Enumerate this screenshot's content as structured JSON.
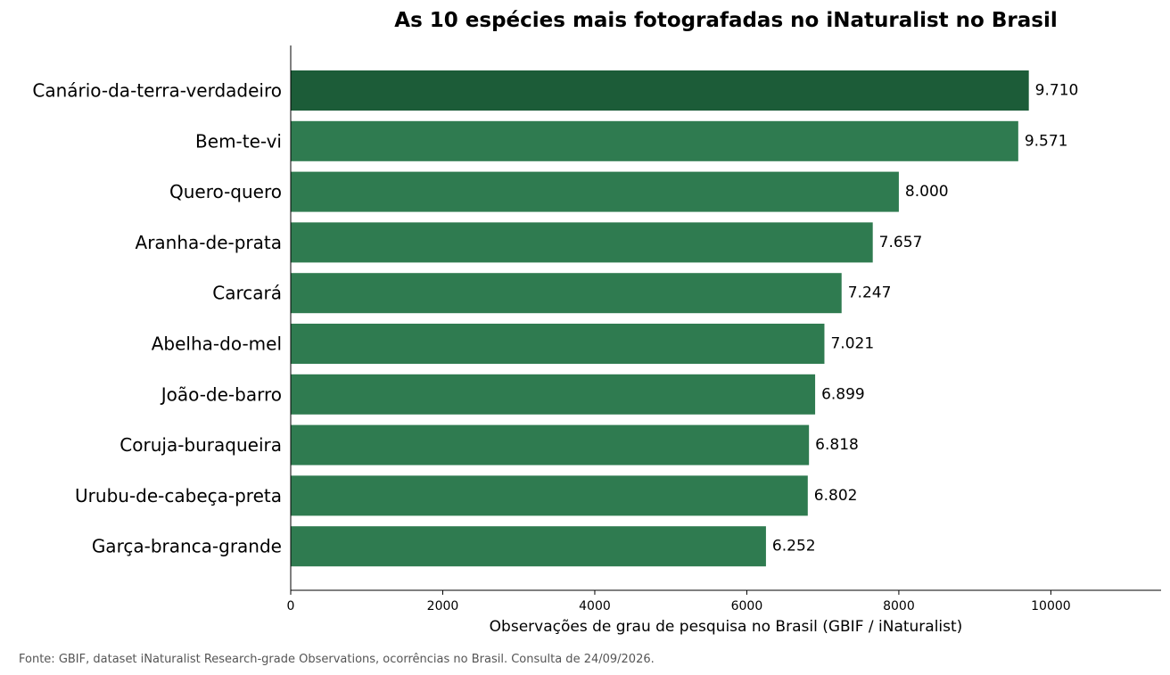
{
  "chart_data": {
    "type": "bar",
    "orientation": "horizontal",
    "title": "As 10 espécies mais fotografadas no iNaturalist no Brasil",
    "xlabel": "Observações de grau de pesquisa no Brasil (GBIF / iNaturalist)",
    "ylabel": "",
    "categories": [
      "Canário-da-terra-verdadeiro",
      "Bem-te-vi",
      "Quero-quero",
      "Aranha-de-prata",
      "Carcará",
      "Abelha-do-mel",
      "João-de-barro",
      "Coruja-buraqueira",
      "Urubu-de-cabeça-preta",
      "Garça-branca-grande"
    ],
    "values": [
      9710,
      9571,
      8000,
      7657,
      7247,
      7021,
      6899,
      6818,
      6802,
      6252
    ],
    "value_labels": [
      "9.710",
      "9.571",
      "8.000",
      "7.657",
      "7.247",
      "7.021",
      "6.899",
      "6.818",
      "6.802",
      "6.252"
    ],
    "xlim": [
      0,
      11450
    ],
    "xticks": [
      0,
      2000,
      4000,
      6000,
      8000,
      10000
    ],
    "xtick_labels": [
      "0",
      "2000",
      "4000",
      "6000",
      "8000",
      "10000"
    ],
    "grid": false,
    "colors": {
      "highlight": "#1c5c38",
      "bar": "#2f7b50"
    }
  },
  "source_note": "Fonte: GBIF, dataset iNaturalist Research-grade Observations, ocorrências no Brasil. Consulta de 24/09/2026."
}
